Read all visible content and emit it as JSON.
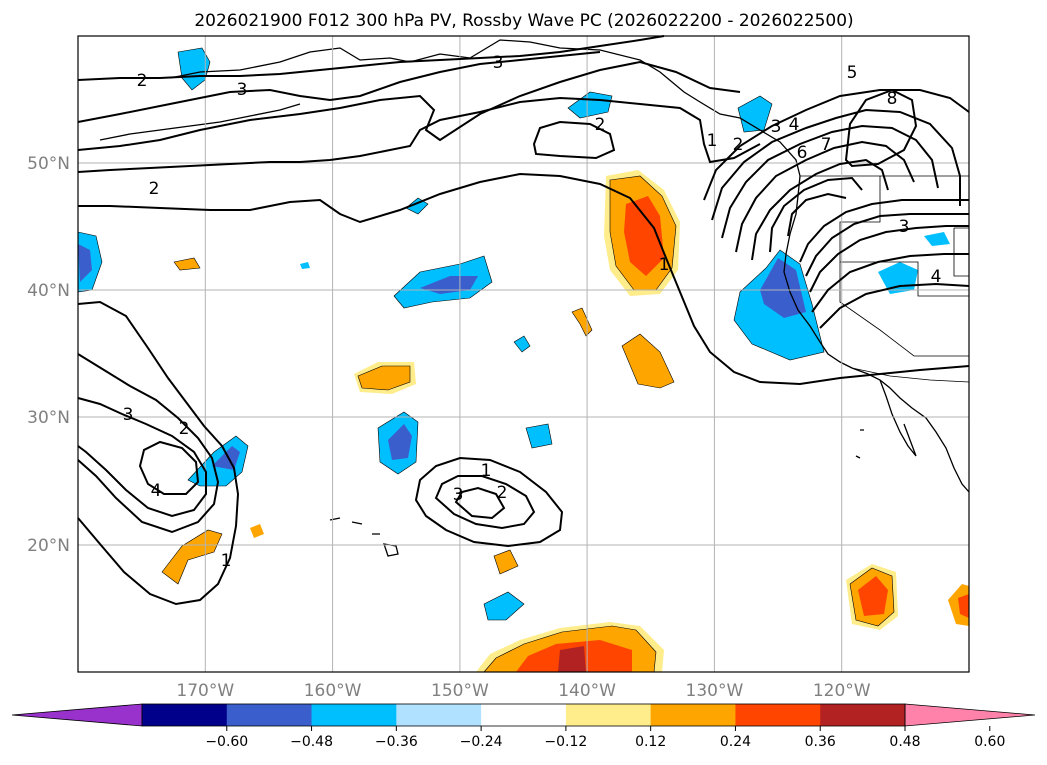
{
  "title": "2026021900 F012 300 hPa PV, Rossby Wave PC (2026022200 - 2026022500)",
  "axes": {
    "lon_labels": [
      "170°W",
      "160°W",
      "150°W",
      "140°W",
      "130°W",
      "120°W"
    ],
    "lat_labels": [
      "50°N",
      "40°N",
      "30°N",
      "20°N"
    ]
  },
  "colorbar": {
    "ticks": [
      "−0.60",
      "−0.48",
      "−0.36",
      "−0.24",
      "−0.12",
      "0.12",
      "0.24",
      "0.36",
      "0.48",
      "0.60"
    ],
    "colors": [
      "#9932cc",
      "#00008b",
      "#3a5fcd",
      "#00bfff",
      "#b0e2ff",
      "#ffffff",
      "#ffec8b",
      "#ffa500",
      "#ff4500",
      "#b22222",
      "#ff82ab"
    ],
    "extend": "both"
  },
  "contour_labels": {
    "pv_2_nw": "2",
    "pv_3_north": "3",
    "pv_3_north_b": "3",
    "pv_2_small": "2",
    "pv_2_west": "2",
    "pv_1_trough": "1",
    "pv_1_coast": "1",
    "pv_2_coast": "2",
    "pv_3_coast": "3",
    "pv_4_coast": "4",
    "pv_5_ne": "5",
    "pv_6_coast": "6",
    "pv_7_coast": "7",
    "pv_8_ne": "8",
    "pv_3_inland": "3",
    "pv_4_inland": "4",
    "pv_3_sw": "3",
    "pv_2_sw": "2",
    "pv_4_sw": "4",
    "pv_1_sw": "1",
    "pv_1_c": "1",
    "pv_2_c": "2",
    "pv_3_c": "3"
  }
}
